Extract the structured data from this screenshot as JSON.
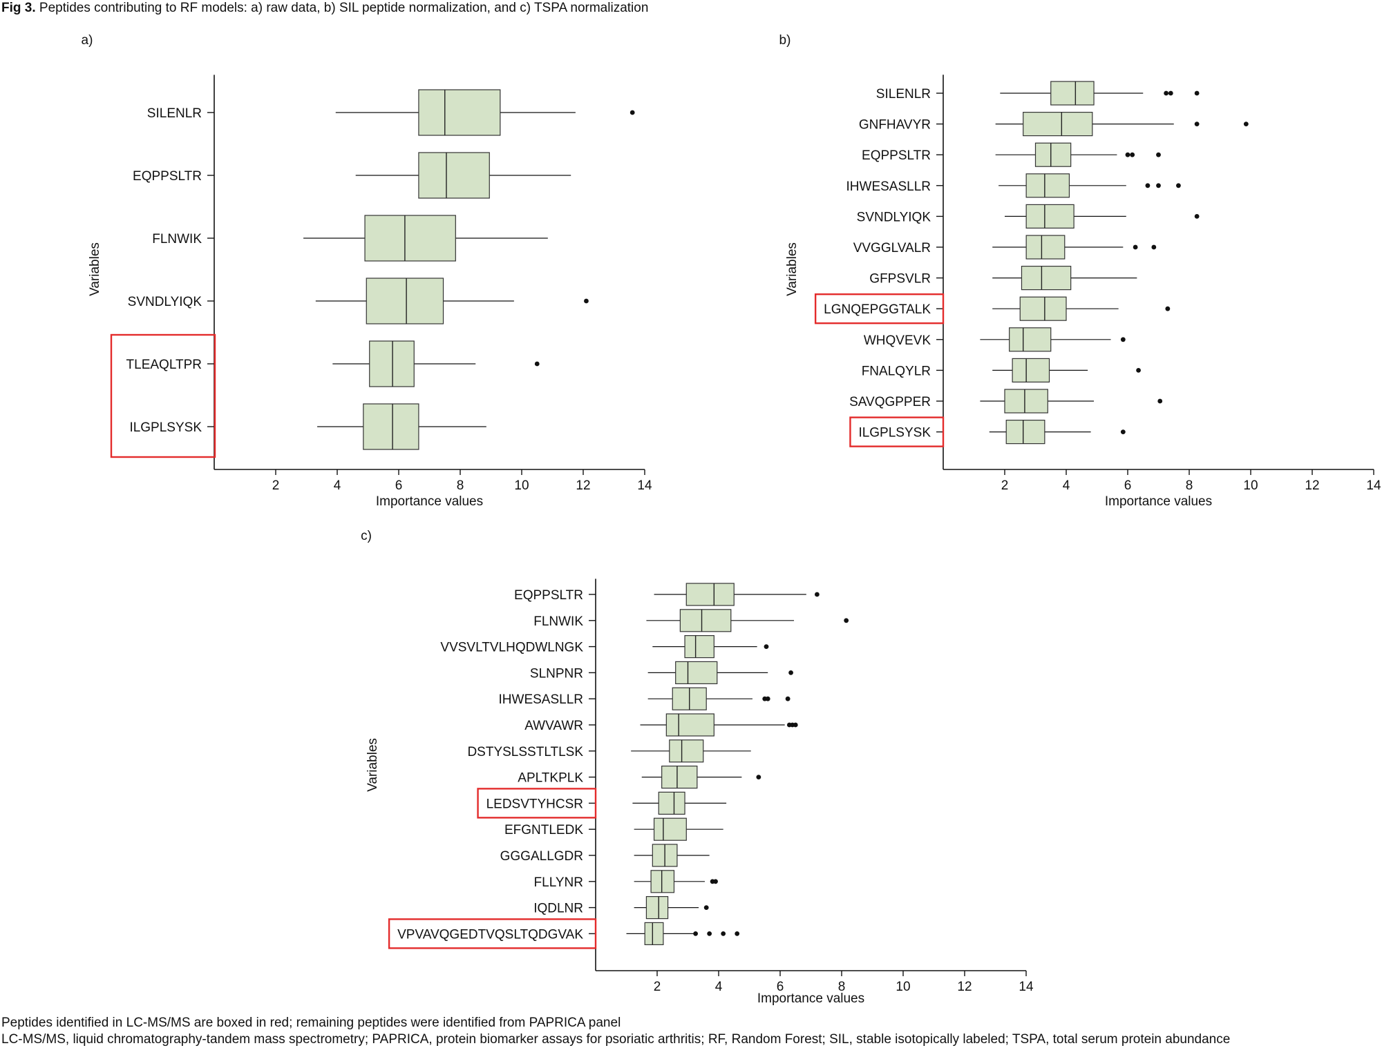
{
  "figure": {
    "label": "Fig 3.",
    "title": "Peptides contributing to RF models: a) raw data, b) SIL peptide normalization, and c) TSPA normalization",
    "footnotes": [
      "Peptides identified in LC-MS/MS are boxed in red; remaining peptides were identified from PAPRICA panel",
      "LC-MS/MS, liquid chromatography-tandem mass spectrometry; PAPRICA, protein biomarker assays for psoriatic arthritis; RF, Random Forest; SIL, stable isotopically labeled; TSPA, total serum protein abundance"
    ]
  },
  "colors": {
    "box_fill": "#d5e3c8",
    "highlight": "#e32b2b",
    "ink": "#111111"
  },
  "chart_data": [
    {
      "panel": "a)",
      "type": "box",
      "xlabel": "Importance values",
      "ylabel": "Variables",
      "xlim": [
        0,
        14
      ],
      "xticks": [
        2,
        4,
        6,
        8,
        10,
        12,
        14
      ],
      "highlight_group": [
        "TLEAQLTPR",
        "ILGPLSYSK"
      ],
      "categories": [
        "SILENLR",
        "EQPPSLTR",
        "FLNWIK",
        "SVNDLYIQK",
        "TLEAQLTPR",
        "ILGPLSYSK"
      ],
      "boxes": [
        {
          "label": "SILENLR",
          "whisker_low": 3.95,
          "q1": 6.65,
          "median": 7.5,
          "q3": 9.3,
          "whisker_high": 11.75,
          "outliers": [
            13.6
          ]
        },
        {
          "label": "EQPPSLTR",
          "whisker_low": 4.6,
          "q1": 6.65,
          "median": 7.55,
          "q3": 8.95,
          "whisker_high": 11.6,
          "outliers": []
        },
        {
          "label": "FLNWIK",
          "whisker_low": 2.9,
          "q1": 4.9,
          "median": 6.2,
          "q3": 7.85,
          "whisker_high": 10.85,
          "outliers": []
        },
        {
          "label": "SVNDLYIQK",
          "whisker_low": 3.3,
          "q1": 4.95,
          "median": 6.25,
          "q3": 7.45,
          "whisker_high": 9.75,
          "outliers": [
            12.1
          ]
        },
        {
          "label": "TLEAQLTPR",
          "whisker_low": 3.85,
          "q1": 5.05,
          "median": 5.8,
          "q3": 6.5,
          "whisker_high": 8.5,
          "outliers": [
            10.5
          ]
        },
        {
          "label": "ILGPLSYSK",
          "whisker_low": 3.35,
          "q1": 4.85,
          "median": 5.8,
          "q3": 6.65,
          "whisker_high": 8.85,
          "outliers": []
        }
      ]
    },
    {
      "panel": "b)",
      "type": "box",
      "xlabel": "Importance values",
      "ylabel": "Variables",
      "xlim": [
        0,
        14
      ],
      "xticks": [
        2,
        4,
        6,
        8,
        10,
        12,
        14
      ],
      "highlighted": [
        "LGNQEPGGTALK",
        "ILGPLSYSK"
      ],
      "categories": [
        "SILENLR",
        "GNFHAVYR",
        "EQPPSLTR",
        "IHWESASLLR",
        "SVNDLYIQK",
        "VVGGLVALR",
        "GFPSVLR",
        "LGNQEPGGTALK",
        "WHQVEVK",
        "FNALQYLR",
        "SAVQGPPER",
        "ILGPLSYSK"
      ],
      "boxes": [
        {
          "label": "SILENLR",
          "whisker_low": 1.85,
          "q1": 3.5,
          "median": 4.3,
          "q3": 4.9,
          "whisker_high": 6.5,
          "outliers": [
            7.25,
            7.4,
            8.25
          ]
        },
        {
          "label": "GNFHAVYR",
          "whisker_low": 1.7,
          "q1": 2.6,
          "median": 3.85,
          "q3": 4.85,
          "whisker_high": 7.5,
          "outliers": [
            8.25,
            9.85
          ]
        },
        {
          "label": "EQPPSLTR",
          "whisker_low": 1.7,
          "q1": 3.0,
          "median": 3.5,
          "q3": 4.15,
          "whisker_high": 5.65,
          "outliers": [
            6.0,
            6.15,
            7.0
          ]
        },
        {
          "label": "IHWESASLLR",
          "whisker_low": 1.8,
          "q1": 2.7,
          "median": 3.3,
          "q3": 4.1,
          "whisker_high": 5.95,
          "outliers": [
            6.65,
            7.0,
            7.65
          ]
        },
        {
          "label": "SVNDLYIQK",
          "whisker_low": 2.0,
          "q1": 2.7,
          "median": 3.3,
          "q3": 4.25,
          "whisker_high": 5.95,
          "outliers": [
            8.25
          ]
        },
        {
          "label": "VVGGLVALR",
          "whisker_low": 1.6,
          "q1": 2.7,
          "median": 3.2,
          "q3": 3.95,
          "whisker_high": 5.85,
          "outliers": [
            6.25,
            6.85
          ]
        },
        {
          "label": "GFPSVLR",
          "whisker_low": 1.6,
          "q1": 2.55,
          "median": 3.2,
          "q3": 4.15,
          "whisker_high": 6.3,
          "outliers": []
        },
        {
          "label": "LGNQEPGGTALK",
          "whisker_low": 1.6,
          "q1": 2.5,
          "median": 3.3,
          "q3": 4.0,
          "whisker_high": 5.7,
          "outliers": [
            7.3
          ]
        },
        {
          "label": "WHQVEVK",
          "whisker_low": 1.2,
          "q1": 2.15,
          "median": 2.6,
          "q3": 3.5,
          "whisker_high": 5.45,
          "outliers": [
            5.85
          ]
        },
        {
          "label": "FNALQYLR",
          "whisker_low": 1.6,
          "q1": 2.25,
          "median": 2.7,
          "q3": 3.45,
          "whisker_high": 4.7,
          "outliers": [
            6.35
          ]
        },
        {
          "label": "SAVQGPPER",
          "whisker_low": 1.2,
          "q1": 2.0,
          "median": 2.65,
          "q3": 3.4,
          "whisker_high": 4.9,
          "outliers": [
            7.05
          ]
        },
        {
          "label": "ILGPLSYSK",
          "whisker_low": 1.5,
          "q1": 2.05,
          "median": 2.6,
          "q3": 3.3,
          "whisker_high": 4.8,
          "outliers": [
            5.85
          ]
        }
      ]
    },
    {
      "panel": "c)",
      "type": "box",
      "xlabel": "Importance values",
      "ylabel": "Variables",
      "xlim": [
        0,
        14
      ],
      "xticks": [
        2,
        4,
        6,
        8,
        10,
        12,
        14
      ],
      "highlighted": [
        "LEDSVTYHCSR",
        "VPVAVQGEDTVQSLTQDGVAK"
      ],
      "categories": [
        "EQPPSLTR",
        "FLNWIK",
        "VVSVLTVLHQDWLNGK",
        "SLNPNR",
        "IHWESASLLR",
        "AWVAWR",
        "DSTYSLSSTLTLSK",
        "APLTKPLK",
        "LEDSVTYHCSR",
        "EFGNTLEDK",
        "GGGALLGDR",
        "FLLYNR",
        "IQDLNR",
        "VPVAVQGEDTVQSLTQDGVAK"
      ],
      "boxes": [
        {
          "label": "EQPPSLTR",
          "whisker_low": 1.9,
          "q1": 2.95,
          "median": 3.85,
          "q3": 4.5,
          "whisker_high": 6.85,
          "outliers": [
            7.2
          ]
        },
        {
          "label": "FLNWIK",
          "whisker_low": 1.65,
          "q1": 2.75,
          "median": 3.45,
          "q3": 4.4,
          "whisker_high": 6.45,
          "outliers": [
            8.15
          ]
        },
        {
          "label": "VVSVLTVLHQDWLNGK",
          "whisker_low": 1.85,
          "q1": 2.9,
          "median": 3.25,
          "q3": 3.85,
          "whisker_high": 5.25,
          "outliers": [
            5.55
          ]
        },
        {
          "label": "SLNPNR",
          "whisker_low": 1.7,
          "q1": 2.6,
          "median": 3.0,
          "q3": 3.95,
          "whisker_high": 5.6,
          "outliers": [
            6.35
          ]
        },
        {
          "label": "IHWESASLLR",
          "whisker_low": 1.7,
          "q1": 2.5,
          "median": 3.05,
          "q3": 3.6,
          "whisker_high": 5.1,
          "outliers": [
            5.5,
            5.6,
            6.25
          ]
        },
        {
          "label": "AWVAWR",
          "whisker_low": 1.45,
          "q1": 2.3,
          "median": 2.7,
          "q3": 3.85,
          "whisker_high": 6.15,
          "outliers": [
            6.3,
            6.4,
            6.5
          ]
        },
        {
          "label": "DSTYSLSSTLTLSK",
          "whisker_low": 1.15,
          "q1": 2.4,
          "median": 2.8,
          "q3": 3.5,
          "whisker_high": 5.05,
          "outliers": []
        },
        {
          "label": "APLTKPLK",
          "whisker_low": 1.5,
          "q1": 2.15,
          "median": 2.65,
          "q3": 3.3,
          "whisker_high": 4.75,
          "outliers": [
            5.3
          ]
        },
        {
          "label": "LEDSVTYHCSR",
          "whisker_low": 1.2,
          "q1": 2.05,
          "median": 2.55,
          "q3": 2.9,
          "whisker_high": 4.25,
          "outliers": []
        },
        {
          "label": "EFGNTLEDK",
          "whisker_low": 1.25,
          "q1": 1.9,
          "median": 2.2,
          "q3": 2.95,
          "whisker_high": 4.15,
          "outliers": []
        },
        {
          "label": "GGGALLGDR",
          "whisker_low": 1.25,
          "q1": 1.85,
          "median": 2.25,
          "q3": 2.65,
          "whisker_high": 3.7,
          "outliers": []
        },
        {
          "label": "FLLYNR",
          "whisker_low": 1.25,
          "q1": 1.8,
          "median": 2.15,
          "q3": 2.55,
          "whisker_high": 3.55,
          "outliers": [
            3.8,
            3.9
          ]
        },
        {
          "label": "IQDLNR",
          "whisker_low": 1.25,
          "q1": 1.65,
          "median": 2.05,
          "q3": 2.35,
          "whisker_high": 3.35,
          "outliers": [
            3.6
          ]
        },
        {
          "label": "VPVAVQGEDTVQSLTQDGVAK",
          "whisker_low": 1.0,
          "q1": 1.6,
          "median": 1.85,
          "q3": 2.2,
          "whisker_high": 3.25,
          "outliers": [
            3.25,
            3.7,
            4.15,
            4.6
          ]
        }
      ]
    }
  ]
}
